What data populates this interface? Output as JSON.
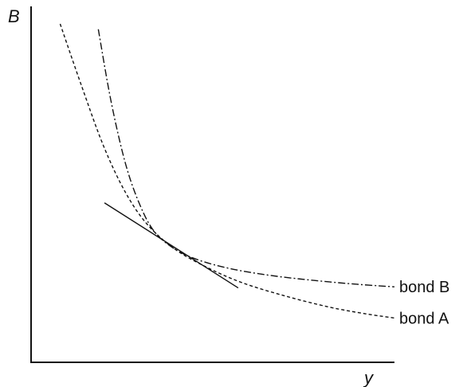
{
  "chart_data": {
    "type": "line",
    "title": "",
    "xlabel": "y",
    "ylabel": "B",
    "xlim": [
      0,
      10
    ],
    "ylim": [
      0,
      10
    ],
    "grid": false,
    "legend": "labels at line ends (right)",
    "tangency_point": {
      "x": 3.95,
      "y": 3.2
    },
    "series": [
      {
        "name": "bond A",
        "style": "dashed",
        "color": "#111111",
        "x": [
          0.8,
          1.4,
          2.0,
          2.6,
          3.2,
          3.95,
          4.8,
          5.8,
          7.0,
          8.2,
          9.2,
          10.0
        ],
        "y": [
          9.55,
          7.77,
          6.09,
          4.79,
          3.89,
          3.2,
          2.7,
          2.25,
          1.87,
          1.56,
          1.37,
          1.25
        ]
      },
      {
        "name": "bond B",
        "style": "dashdot",
        "color": "#111111",
        "x": [
          1.85,
          2.2,
          2.6,
          3.0,
          3.4,
          3.95,
          4.6,
          5.5,
          6.6,
          7.8,
          9.0,
          10.0
        ],
        "y": [
          9.4,
          7.37,
          5.6,
          4.43,
          3.68,
          3.2,
          2.89,
          2.64,
          2.45,
          2.31,
          2.2,
          2.13
        ]
      },
      {
        "name": "",
        "style": "solid",
        "color": "#111111",
        "x": [
          2.02,
          5.7
        ],
        "y": [
          4.5,
          2.1
        ]
      }
    ]
  }
}
